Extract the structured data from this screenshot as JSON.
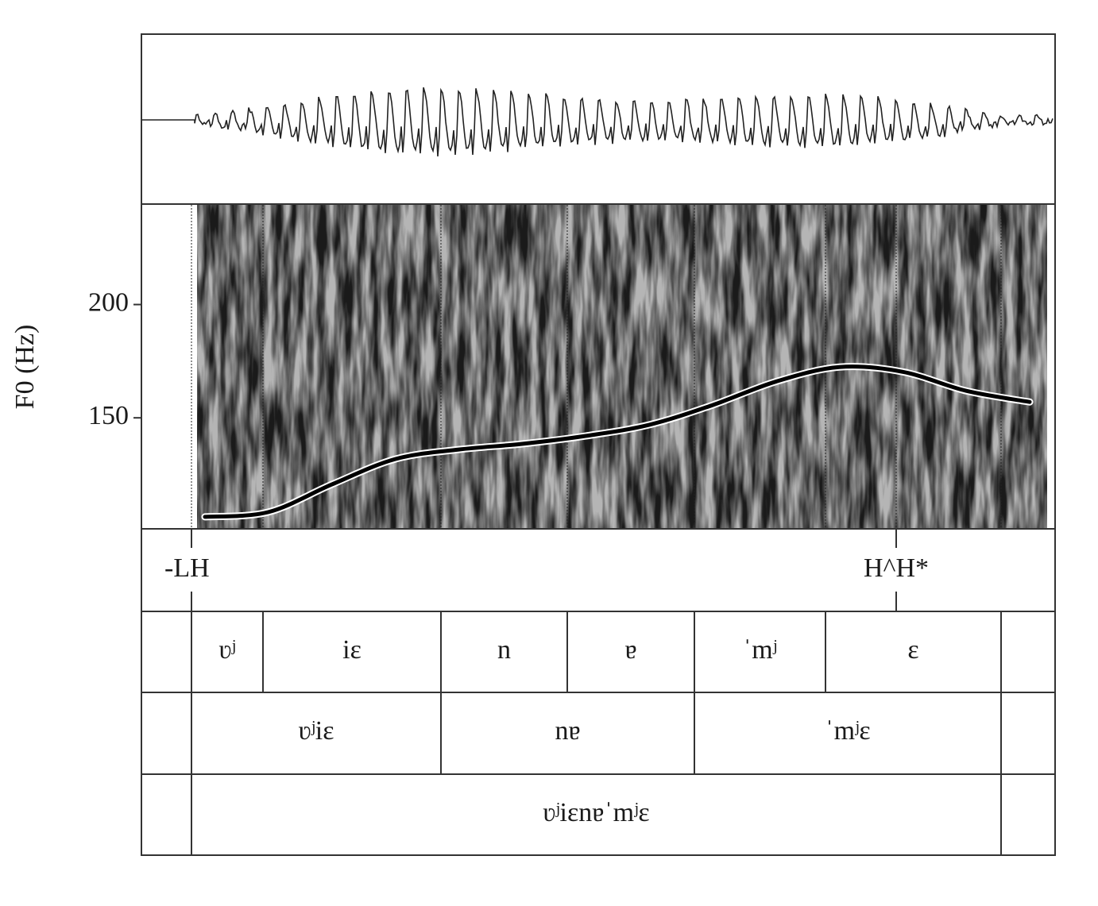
{
  "chart_data": {
    "type": "line",
    "y_label": "F0 (Hz)",
    "ylim": [
      101,
      244
    ],
    "yticks": [
      150,
      200
    ],
    "series": [
      {
        "color": "#000000",
        "values": [
          106.3,
          108.4,
          120.6,
          131.8,
          136,
          138.5,
          142,
          146.9,
          155.6,
          166,
          172.4,
          170.3,
          161.9,
          157
        ]
      }
    ],
    "tones": [
      "-LH",
      "H^H*"
    ],
    "tiers": [
      [
        "ʋʲ",
        "iɛ",
        "n",
        "ɐ",
        "ˈmʲ",
        "ɛ"
      ],
      [
        "ʋʲiɛ",
        "nɐ",
        "ˈmʲɛ"
      ],
      [
        "ʋʲiɛnɐˈmʲɛ"
      ]
    ]
  }
}
